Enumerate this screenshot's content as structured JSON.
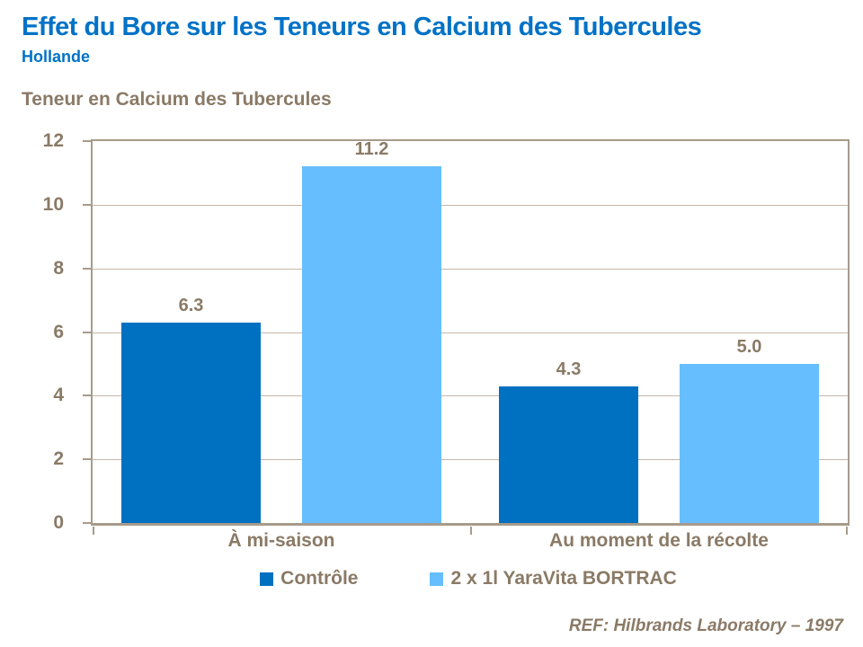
{
  "header": {
    "title": "Effet du Bore sur les Teneurs en Calcium des Tubercules",
    "subtitle": "Hollande"
  },
  "footer": {
    "reference": "REF: Hilbrands Laboratory – 1997"
  },
  "colors": {
    "title_blue": "#0072C6",
    "text_brown": "#8A7A66",
    "axis_line": "#A79B8B",
    "gridline": "#C3B8A8",
    "series_controle": "#0070C0",
    "series_bortrac": "#66BEFF"
  },
  "chart_data": {
    "type": "bar",
    "title": "Teneur en Calcium des Tubercules",
    "categories": [
      "À mi-saison",
      "Au moment de la récolte"
    ],
    "series": [
      {
        "name": "Contrôle",
        "color": "#0070C0",
        "values": [
          6.3,
          4.3
        ]
      },
      {
        "name": "2 x 1l YaraVita BORTRAC",
        "color": "#66BEFF",
        "values": [
          11.2,
          5.0
        ]
      }
    ],
    "xlabel": "",
    "ylabel": "",
    "ylim": [
      0,
      12
    ],
    "ytick_step": 2,
    "grid": true,
    "legend_position": "bottom",
    "data_labels": true
  }
}
